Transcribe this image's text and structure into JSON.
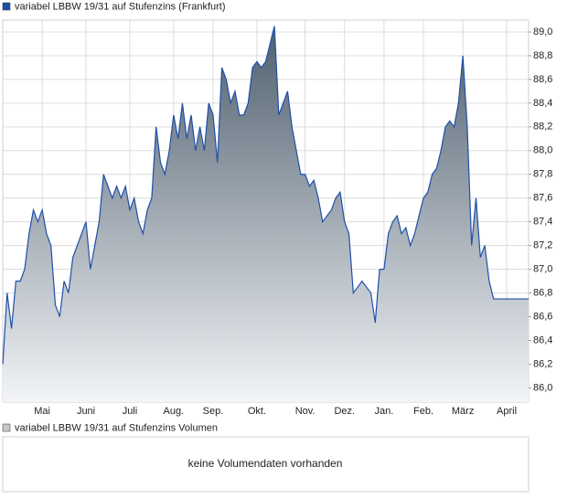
{
  "chart_data": {
    "type": "area",
    "legend": "variabel LBBW 19/31 auf Stufenzins (Frankfurt)",
    "color": "#1f4fa8",
    "fill_top": "#4d5d6c",
    "fill_bottom": "#f2f4f7",
    "grid": true,
    "categories": [
      null,
      null,
      null,
      null,
      null,
      null,
      null,
      null,
      null,
      "Mai",
      null,
      null,
      null,
      null,
      null,
      null,
      null,
      null,
      null,
      "Juni",
      null,
      null,
      null,
      null,
      null,
      null,
      null,
      null,
      null,
      "Juli",
      null,
      null,
      null,
      null,
      null,
      null,
      null,
      null,
      null,
      "Aug.",
      null,
      null,
      null,
      null,
      null,
      null,
      null,
      null,
      "Sep.",
      null,
      null,
      null,
      null,
      null,
      null,
      null,
      null,
      null,
      "Okt.",
      null,
      null,
      null,
      null,
      null,
      null,
      null,
      null,
      null,
      null,
      "Nov.",
      null,
      null,
      null,
      null,
      null,
      null,
      null,
      null,
      "Dez.",
      null,
      null,
      null,
      null,
      null,
      null,
      null,
      null,
      "Jan.",
      null,
      null,
      null,
      null,
      null,
      null,
      null,
      null,
      "Feb.",
      null,
      null,
      null,
      null,
      null,
      null,
      null,
      null,
      "März",
      null,
      null,
      null,
      null,
      null,
      null,
      null,
      null,
      null,
      "April",
      null,
      null,
      null,
      null,
      null
    ],
    "values": [
      86.2,
      86.8,
      86.5,
      86.9,
      86.9,
      87.0,
      87.3,
      87.5,
      87.4,
      87.5,
      87.3,
      87.2,
      86.7,
      86.6,
      86.9,
      86.8,
      87.1,
      87.2,
      87.3,
      87.4,
      87.0,
      87.2,
      87.4,
      87.8,
      87.7,
      87.6,
      87.7,
      87.6,
      87.7,
      87.5,
      87.6,
      87.4,
      87.3,
      87.5,
      87.6,
      88.2,
      87.9,
      87.8,
      88.0,
      88.3,
      88.1,
      88.4,
      88.1,
      88.3,
      88.0,
      88.2,
      88.0,
      88.4,
      88.3,
      87.9,
      88.7,
      88.6,
      88.4,
      88.5,
      88.3,
      88.3,
      88.4,
      88.7,
      88.75,
      88.7,
      88.75,
      88.9,
      89.05,
      88.3,
      88.4,
      88.5,
      88.2,
      88.0,
      87.8,
      87.8,
      87.7,
      87.75,
      87.6,
      87.4,
      87.45,
      87.5,
      87.6,
      87.65,
      87.4,
      87.3,
      86.8,
      86.85,
      86.9,
      86.85,
      86.8,
      86.55,
      87.0,
      87.0,
      87.3,
      87.4,
      87.45,
      87.3,
      87.35,
      87.2,
      87.3,
      87.45,
      87.6,
      87.65,
      87.8,
      87.85,
      88.0,
      88.2,
      88.25,
      88.2,
      88.4,
      88.8,
      88.2,
      87.2,
      87.6,
      87.1,
      87.2,
      86.9,
      86.75,
      86.75,
      86.75,
      86.75,
      86.75,
      86.75,
      86.75,
      86.75,
      86.75
    ],
    "ylim": [
      85.88,
      89.1
    ],
    "yticks": [
      {
        "value": 86.0,
        "label": "86,0"
      },
      {
        "value": 86.2,
        "label": "86,2"
      },
      {
        "value": 86.4,
        "label": "86,4"
      },
      {
        "value": 86.6,
        "label": "86,6"
      },
      {
        "value": 86.8,
        "label": "86,8"
      },
      {
        "value": 87.0,
        "label": "87,0"
      },
      {
        "value": 87.2,
        "label": "87,2"
      },
      {
        "value": 87.4,
        "label": "87,4"
      },
      {
        "value": 87.6,
        "label": "87,6"
      },
      {
        "value": 87.8,
        "label": "87,8"
      },
      {
        "value": 88.0,
        "label": "88,0"
      },
      {
        "value": 88.2,
        "label": "88,2"
      },
      {
        "value": 88.4,
        "label": "88,4"
      },
      {
        "value": 88.6,
        "label": "88,6"
      },
      {
        "value": 88.8,
        "label": "88,8"
      },
      {
        "value": 89.0,
        "label": "89,0"
      }
    ]
  },
  "volume_panel": {
    "legend": "variabel LBBW 19/31 auf Stufenzins Volumen",
    "message": "keine Volumendaten vorhanden"
  }
}
